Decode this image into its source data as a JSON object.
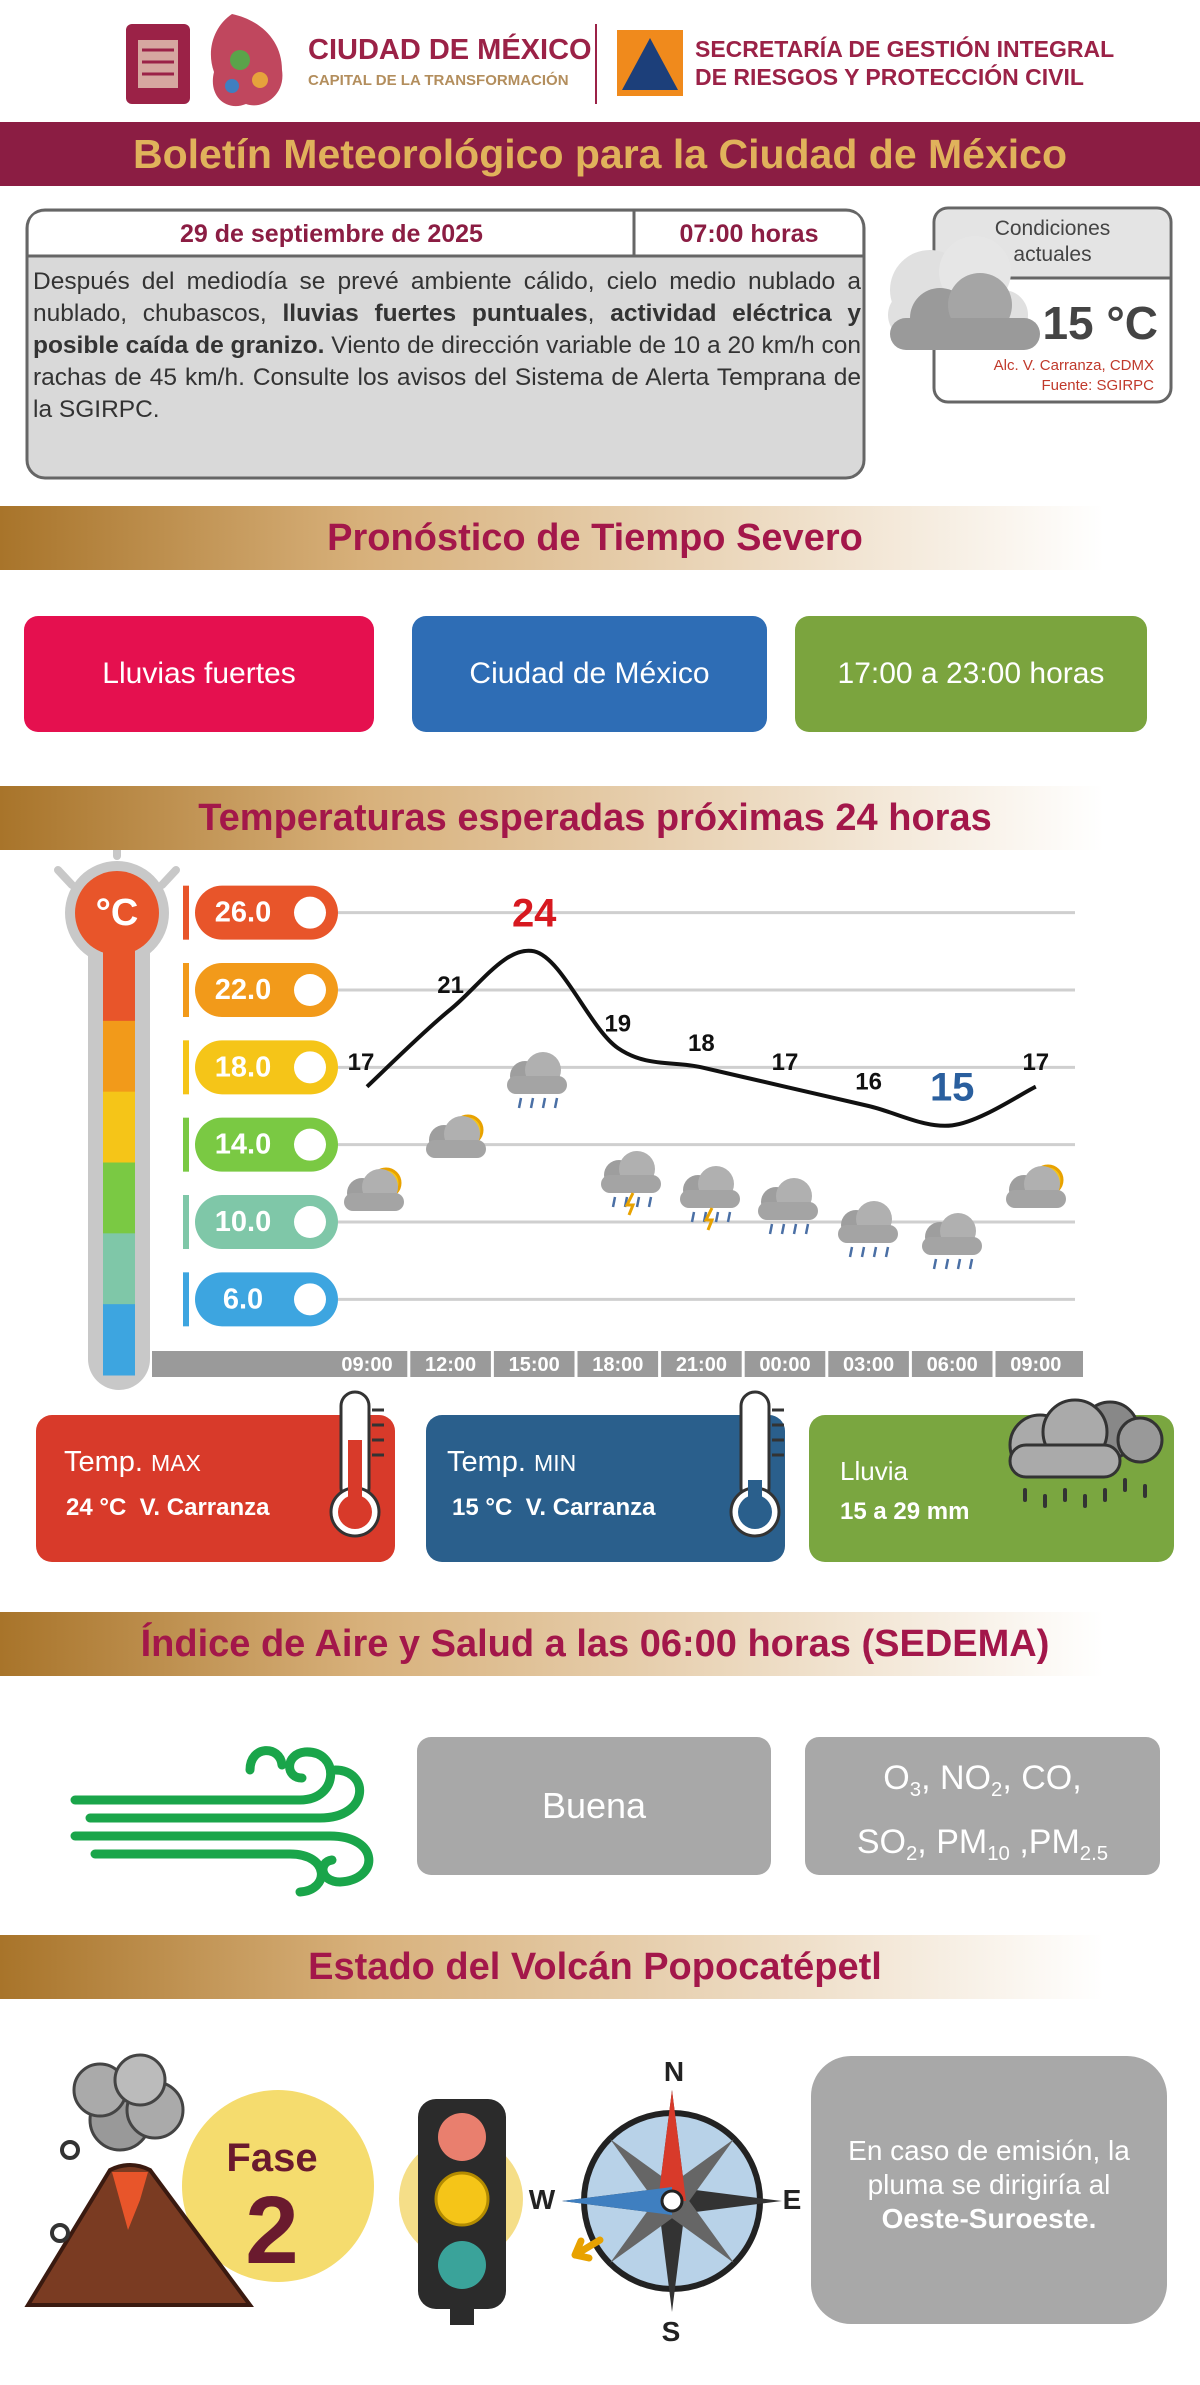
{
  "header": {
    "city": "CIUDAD DE MÉXICO",
    "city_tagline": "CAPITAL DE LA TRANSFORMACIÓN",
    "agency": [
      "SECRETARÍA DE GESTIÓN INTEGRAL",
      "DE RIESGOS Y PROTECCIÓN CIVIL"
    ]
  },
  "title": "Boletín Meteorológico para la Ciudad de México",
  "bulletin": {
    "date": "29 de septiembre de 2025",
    "time": "07:00 horas",
    "text": [
      {
        "text": "Después del mediodía se prevé ambiente cálido, cielo medio nublado a nublado, chubascos, "
      },
      {
        "text": "lluvias fuertes puntuales",
        "bold": true
      },
      {
        "text": ", "
      },
      {
        "text": "actividad eléctrica y posible caída de granizo.",
        "bold": true
      },
      {
        "text": " Viento de dirección variable de 10 a 20 km/h con rachas de 45 km/h. Consulte los avisos del Sistema de Alerta Temprana de la SGIRPC."
      }
    ]
  },
  "current": {
    "label": [
      "Condiciones",
      "actuales"
    ],
    "temperature": "15 °C",
    "location": "Alc. V. Carranza, CDMX",
    "source": "Fuente: SGIRPC"
  },
  "severe": {
    "heading": "Pronóstico de Tiempo Severo",
    "items": [
      "Lluvias fuertes",
      "Ciudad de México",
      "17:00 a 23:00 horas"
    ]
  },
  "chart_data": {
    "type": "line",
    "title": "Temperaturas esperadas próximas 24 horas",
    "unit_label": "°C",
    "categories": [
      "09:00",
      "12:00",
      "15:00",
      "18:00",
      "21:00",
      "00:00",
      "03:00",
      "06:00",
      "09:00"
    ],
    "values": [
      17,
      21,
      24,
      19,
      18,
      17,
      16,
      15,
      17
    ],
    "color": "#111111",
    "max_label_color": "#d71920",
    "min_label_color": "#2a5f9e",
    "ylim": [
      4,
      28
    ],
    "yticks": [
      {
        "value": 26,
        "label": "26.0"
      },
      {
        "value": 22,
        "label": "22.0"
      },
      {
        "value": 18,
        "label": "18.0"
      },
      {
        "value": 14,
        "label": "14.0"
      },
      {
        "value": 10,
        "label": "10.0"
      },
      {
        "value": 6,
        "label": "6.0"
      }
    ],
    "ytick_colors": [
      "#e8552a",
      "#f29a1a",
      "#f5c518",
      "#7ac943",
      "#7fc7a8",
      "#3da5e0"
    ],
    "grid": true
  },
  "summary": {
    "max": {
      "label": "Temp.",
      "qualifier": "MAX",
      "value": "24 °C  V. Carranza"
    },
    "min": {
      "label": "Temp.",
      "qualifier": "MIN",
      "value": "15 °C  V. Carranza"
    },
    "rain": {
      "label": "Lluvia",
      "value": "15 a 29 mm"
    }
  },
  "air": {
    "heading": "Índice de Aire y Salud a las 06:00 horas (SEDEMA)",
    "quality": "Buena",
    "pollutants": [
      [
        {
          "text": "O",
          "sub": "3"
        },
        {
          "text": ", NO",
          "sub": "2"
        },
        {
          "text": ", CO,"
        }
      ],
      [
        {
          "text": "SO",
          "sub": "2"
        },
        {
          "text": ", PM",
          "sub": "10"
        },
        {
          "text": " ,PM",
          "sub": "2.5"
        }
      ]
    ]
  },
  "volcano": {
    "heading": "Estado del Volcán Popocatépetl",
    "phase_label": "Fase",
    "phase": "2",
    "compass": {
      "N": "N",
      "S": "S",
      "W": "W",
      "E": "E"
    },
    "plume": [
      {
        "text": "En caso de emisión, la pluma se dirigiría al "
      },
      {
        "text": "Oeste-Suroeste.",
        "bold": true
      }
    ]
  }
}
